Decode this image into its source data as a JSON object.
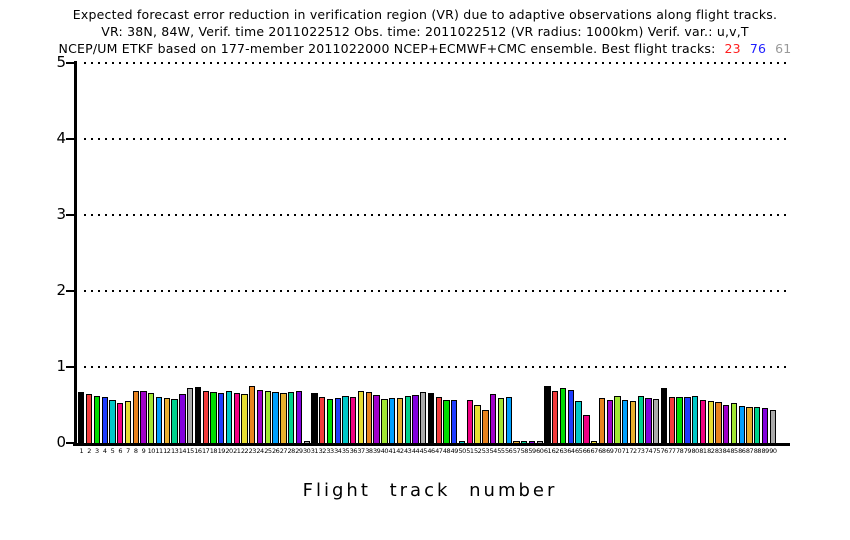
{
  "title": {
    "line1": "Expected forecast error reduction in verification region (VR) due to adaptive observations along flight tracks.",
    "line2": "VR: 38N, 84W, Verif. time 2011022512 Obs. time: 2011022512 (VR radius: 1000km)  Verif. var.: u,v,T",
    "line3_prefix": "NCEP/UM ETKF based on 177-member 2011022000 NCEP+ECMWF+CMC ensemble. Best flight tracks:",
    "best_tracks": [
      {
        "label": "23",
        "color": "#ff1e1e"
      },
      {
        "label": "76",
        "color": "#1e1eff"
      },
      {
        "label": "61",
        "color": "#9a9a9a"
      }
    ]
  },
  "chart_data": {
    "type": "bar",
    "title": "Expected forecast error reduction in verification region (VR) due to adaptive observations along flight tracks.",
    "subtitle1": "VR: 38N, 84W, Verif. time 2011022512 Obs. time: 2011022512 (VR radius: 1000km)  Verif. var.: u,v,T",
    "subtitle2": "NCEP/UM ETKF based on 177-member 2011022000 NCEP+ECMWF+CMC ensemble. Best flight tracks: 23 76 61",
    "xlabel": "Flight track number",
    "ylabel": "",
    "ylim": [
      0,
      5
    ],
    "yticks": [
      0,
      1,
      2,
      3,
      4,
      5
    ],
    "grid": "horizontal dotted lines at y = 1,2,3,4,5",
    "legend": "none",
    "x": [
      1,
      2,
      3,
      4,
      5,
      6,
      7,
      8,
      9,
      10,
      11,
      12,
      13,
      14,
      15,
      16,
      17,
      18,
      19,
      20,
      21,
      22,
      23,
      24,
      25,
      26,
      27,
      28,
      29,
      30,
      31,
      32,
      33,
      34,
      35,
      36,
      37,
      38,
      39,
      40,
      41,
      42,
      43,
      44,
      45,
      46,
      47,
      48,
      49,
      50,
      51,
      52,
      53,
      54,
      55,
      56,
      57,
      58,
      59,
      60,
      61,
      62,
      63,
      64,
      65,
      66,
      67,
      68,
      69,
      70,
      71,
      72,
      73,
      74,
      75,
      76,
      77,
      78,
      79,
      80,
      81,
      82,
      83,
      84,
      85,
      86,
      87,
      88,
      89,
      90
    ],
    "values": [
      0.67,
      0.65,
      0.62,
      0.6,
      0.56,
      0.53,
      0.55,
      0.68,
      0.69,
      0.66,
      0.61,
      0.59,
      0.58,
      0.64,
      0.73,
      0.74,
      0.68,
      0.67,
      0.66,
      0.68,
      0.66,
      0.64,
      0.745,
      0.7,
      0.68,
      0.67,
      0.66,
      0.67,
      0.68,
      0.02,
      0.66,
      0.61,
      0.58,
      0.59,
      0.62,
      0.6,
      0.68,
      0.665,
      0.635,
      0.58,
      0.59,
      0.59,
      0.62,
      0.635,
      0.665,
      0.66,
      0.605,
      0.57,
      0.565,
      0.02,
      0.56,
      0.5,
      0.44,
      0.65,
      0.59,
      0.61,
      0.02,
      0.02,
      0.02,
      0.02,
      0.75,
      0.68,
      0.72,
      0.7,
      0.55,
      0.37,
      0.02,
      0.59,
      0.57,
      0.62,
      0.56,
      0.55,
      0.62,
      0.59,
      0.58,
      0.72,
      0.61,
      0.61,
      0.6,
      0.62,
      0.57,
      0.55,
      0.535,
      0.5,
      0.52,
      0.49,
      0.48,
      0.47,
      0.46,
      0.44
    ],
    "bar_color_rule": "bar n uses palette[(n-1) mod 15]",
    "palette": [
      {
        "name": "black",
        "hex": "#000000"
      },
      {
        "name": "red",
        "hex": "#f23c3c"
      },
      {
        "name": "green",
        "hex": "#00dc00"
      },
      {
        "name": "dark-blue",
        "hex": "#1e3cff"
      },
      {
        "name": "cyan",
        "hex": "#00c8c8"
      },
      {
        "name": "magenta",
        "hex": "#f00082"
      },
      {
        "name": "yellow",
        "hex": "#e6dc32"
      },
      {
        "name": "orange",
        "hex": "#e8821e"
      },
      {
        "name": "purple",
        "hex": "#a000c8"
      },
      {
        "name": "yellow-green",
        "hex": "#a0e632"
      },
      {
        "name": "medium-blue",
        "hex": "#00a0ff"
      },
      {
        "name": "gold",
        "hex": "#e6af2d"
      },
      {
        "name": "aqua",
        "hex": "#00d28c"
      },
      {
        "name": "dark-purple",
        "hex": "#8200dc"
      },
      {
        "name": "gray",
        "hex": "#aaaaaa"
      }
    ]
  }
}
